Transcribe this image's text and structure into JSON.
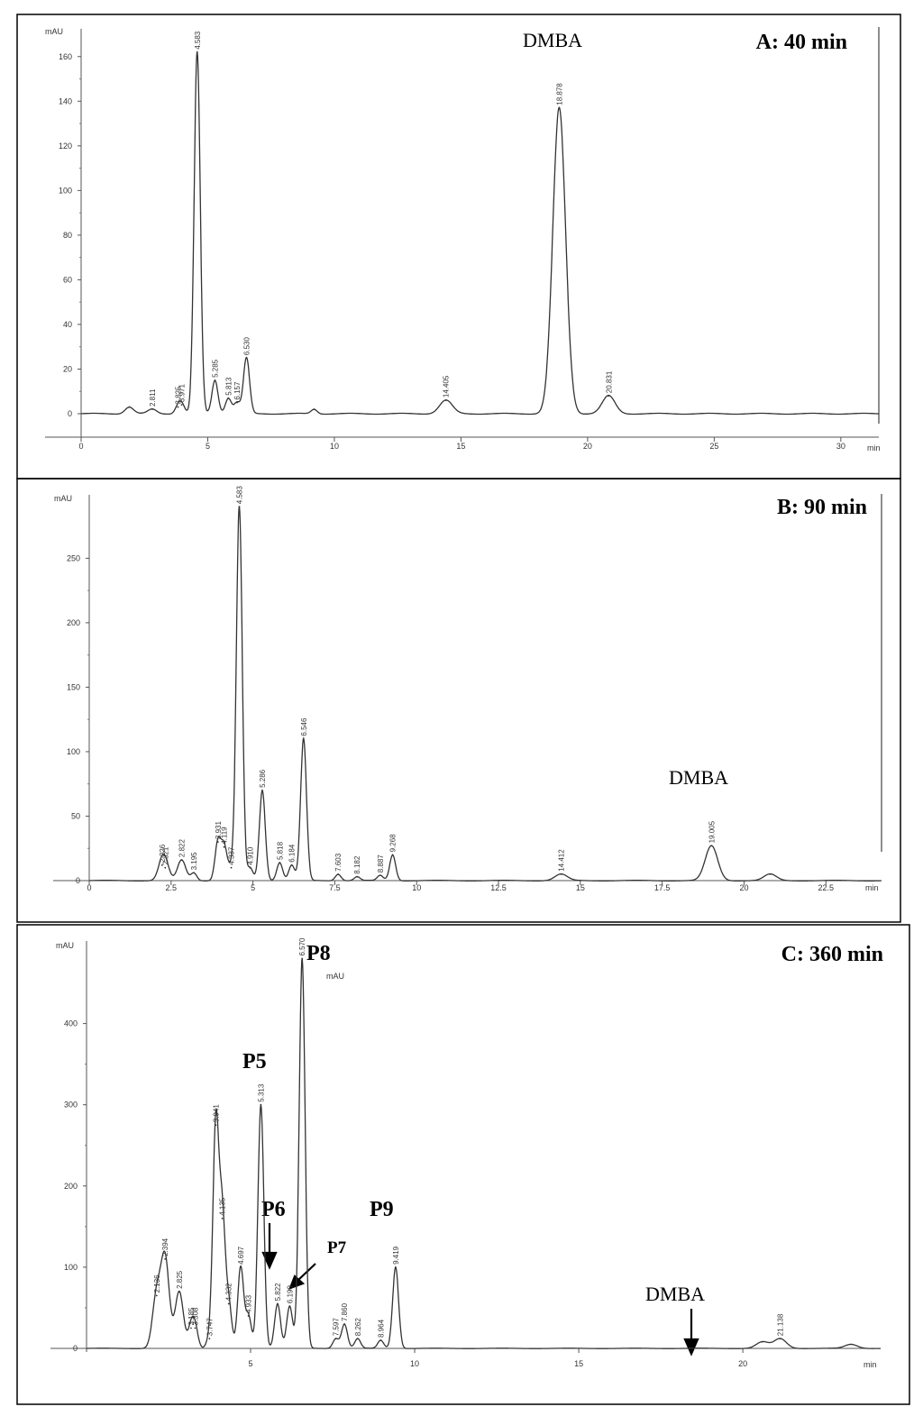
{
  "chart_data": [
    {
      "type": "line",
      "title": "A: 40 min",
      "ylabel": "mAU",
      "xunit": "min",
      "xlim": [
        0,
        31.5
      ],
      "ylim": [
        -10,
        170
      ],
      "xticks": [
        0,
        5,
        10,
        15,
        20,
        25,
        30
      ],
      "yticks": [
        0,
        20,
        40,
        60,
        80,
        100,
        120,
        140,
        160
      ],
      "compound_label": "DMBA",
      "peaks": [
        {
          "rt": 1.9,
          "h": 3
        },
        {
          "rt": 2.811,
          "h": 2,
          "label": "2.811"
        },
        {
          "rt": 3.825,
          "h": 3,
          "label": "3.825"
        },
        {
          "rt": 3.971,
          "h": 4,
          "label": "3.971"
        },
        {
          "rt": 4.583,
          "h": 162,
          "label": "4.583"
        },
        {
          "rt": 5.285,
          "h": 15,
          "label": "5.285"
        },
        {
          "rt": 5.813,
          "h": 7,
          "label": "5.813"
        },
        {
          "rt": 6.157,
          "h": 5,
          "label": "6.157"
        },
        {
          "rt": 6.53,
          "h": 25,
          "label": "6.530"
        },
        {
          "rt": 9.2,
          "h": 2
        },
        {
          "rt": 14.405,
          "h": 6,
          "label": "14.405"
        },
        {
          "rt": 18.878,
          "h": 137,
          "label": "18.878"
        },
        {
          "rt": 20.831,
          "h": 8,
          "label": "20.831"
        }
      ]
    },
    {
      "type": "line",
      "title": "B: 90 min",
      "ylabel": "mAU",
      "xunit": "min",
      "xlim": [
        0,
        24.2
      ],
      "ylim": [
        -10,
        295
      ],
      "xticks": [
        0,
        2.5,
        5,
        7.5,
        10,
        12.5,
        15,
        17.5,
        20,
        22.5
      ],
      "yticks": [
        0,
        50,
        100,
        150,
        200,
        250
      ],
      "compound_label": "DMBA",
      "peaks": [
        {
          "rt": 2.226,
          "h": 12,
          "label": "2.226"
        },
        {
          "rt": 2.321,
          "h": 10,
          "label": "2.321"
        },
        {
          "rt": 2.822,
          "h": 16,
          "label": "2.822"
        },
        {
          "rt": 3.195,
          "h": 6,
          "label": "3.195"
        },
        {
          "rt": 3.931,
          "h": 30,
          "label": "3.931"
        },
        {
          "rt": 4.119,
          "h": 26,
          "label": "4.119"
        },
        {
          "rt": 4.337,
          "h": 10,
          "label": "4.337"
        },
        {
          "rt": 4.583,
          "h": 290,
          "label": "4.583"
        },
        {
          "rt": 4.91,
          "h": 10,
          "label": "4.910"
        },
        {
          "rt": 5.286,
          "h": 70,
          "label": "5.286"
        },
        {
          "rt": 5.818,
          "h": 14,
          "label": "5.818"
        },
        {
          "rt": 6.184,
          "h": 12,
          "label": "6.184"
        },
        {
          "rt": 6.546,
          "h": 110,
          "label": "6.546"
        },
        {
          "rt": 7.603,
          "h": 5,
          "label": "7.603"
        },
        {
          "rt": 8.182,
          "h": 3,
          "label": "8.182"
        },
        {
          "rt": 8.887,
          "h": 4,
          "label": "8.887"
        },
        {
          "rt": 9.268,
          "h": 20,
          "label": "9.268"
        },
        {
          "rt": 14.412,
          "h": 5,
          "label": "14.412"
        },
        {
          "rt": 19.005,
          "h": 27,
          "label": "19.005"
        },
        {
          "rt": 20.8,
          "h": 5
        }
      ]
    },
    {
      "type": "line",
      "title": "C: 360 min",
      "ylabel": "mAU",
      "xunit": "min",
      "xlim": [
        0,
        24.2
      ],
      "ylim": [
        -10,
        495
      ],
      "xticks": [
        5,
        10,
        15,
        20
      ],
      "yticks": [
        0,
        100,
        200,
        300,
        400
      ],
      "compound_label": "DMBA",
      "inset_label": "mAU",
      "annotations": [
        "P5",
        "P6",
        "P7",
        "P8",
        "P9"
      ],
      "peaks": [
        {
          "rt": 2.136,
          "h": 65,
          "label": "2.136"
        },
        {
          "rt": 2.394,
          "h": 110,
          "label": "2.394"
        },
        {
          "rt": 2.825,
          "h": 70,
          "label": "2.825"
        },
        {
          "rt": 3.185,
          "h": 25,
          "label": "3.185"
        },
        {
          "rt": 3.308,
          "h": 25,
          "label": "3.308"
        },
        {
          "rt": 3.747,
          "h": 12,
          "label": "3.747"
        },
        {
          "rt": 3.941,
          "h": 275,
          "label": "3.941"
        },
        {
          "rt": 4.135,
          "h": 160,
          "label": "4.135"
        },
        {
          "rt": 4.332,
          "h": 55,
          "label": "4.332"
        },
        {
          "rt": 4.697,
          "h": 100,
          "label": "4.697"
        },
        {
          "rt": 4.933,
          "h": 40,
          "label": "4.933"
        },
        {
          "rt": 5.313,
          "h": 300,
          "label": "5.313"
        },
        {
          "rt": 5.822,
          "h": 55,
          "label": "5.822"
        },
        {
          "rt": 6.19,
          "h": 52,
          "label": "6.190"
        },
        {
          "rt": 6.57,
          "h": 480,
          "label": "6.570"
        },
        {
          "rt": 7.597,
          "h": 12,
          "label": "7.597"
        },
        {
          "rt": 7.86,
          "h": 30,
          "label": "7.860"
        },
        {
          "rt": 8.262,
          "h": 12,
          "label": "8.262"
        },
        {
          "rt": 8.964,
          "h": 10,
          "label": "8.964"
        },
        {
          "rt": 9.419,
          "h": 100,
          "label": "9.419"
        },
        {
          "rt": 20.6,
          "h": 8
        },
        {
          "rt": 21.138,
          "h": 12,
          "label": "21.138"
        },
        {
          "rt": 23.3,
          "h": 5
        }
      ]
    }
  ]
}
